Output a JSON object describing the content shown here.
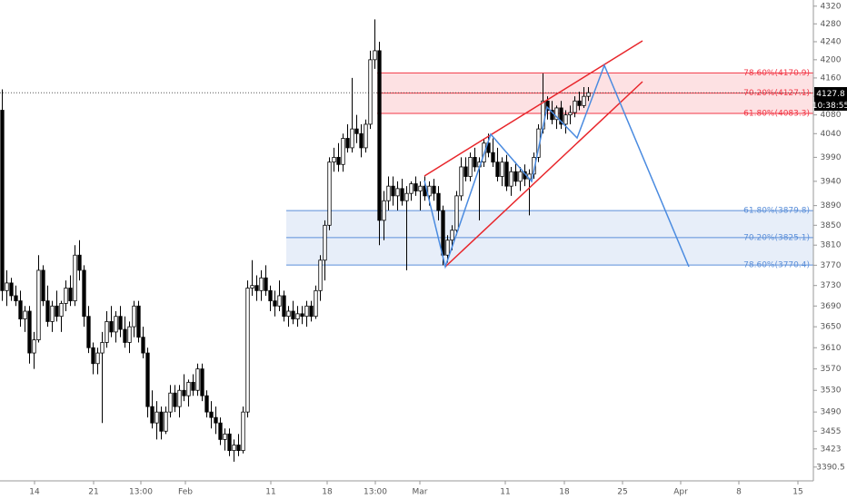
{
  "chart_data": {
    "type": "candlestick",
    "log_scale": true,
    "grid": false,
    "up_color": "#ffffff",
    "down_color": "#000000",
    "outline_color": "#000000",
    "xlim": [
      0,
      179
    ],
    "xticks": [
      {
        "value": 7.6,
        "label": "14"
      },
      {
        "value": 20.6,
        "label": "21"
      },
      {
        "value": 31,
        "label": "13:00"
      },
      {
        "value": 40.8,
        "label": "Feb"
      },
      {
        "value": 59.6,
        "label": "11"
      },
      {
        "value": 72,
        "label": "18"
      },
      {
        "value": 82.6,
        "label": "13:00"
      },
      {
        "value": 92.4,
        "label": "Mar"
      },
      {
        "value": 111.2,
        "label": "11"
      },
      {
        "value": 124.2,
        "label": "18"
      },
      {
        "value": 137,
        "label": "25"
      },
      {
        "value": 149.8,
        "label": "Apr"
      },
      {
        "value": 162.6,
        "label": "8"
      },
      {
        "value": 175.6,
        "label": "15"
      }
    ],
    "ylim": [
      3366,
      4334
    ],
    "yticks": [
      4320,
      4280,
      4240,
      4200,
      4160,
      4120,
      4080,
      4040,
      3990,
      3940,
      3890,
      3850,
      3810,
      3770,
      3730,
      3690,
      3650,
      3610,
      3570,
      3530,
      3490,
      3455,
      3423,
      3390.5
    ],
    "last_price": 4127.8,
    "countdown": "10:38:55",
    "zones": [
      {
        "color": "#f23645",
        "levels": [
          {
            "value": 4170.9,
            "label": "78.60%(4170.9)"
          },
          {
            "value": 4127.1,
            "label": "70.20%(4127.1)"
          },
          {
            "value": 4083.3,
            "label": "61.80%(4083.3)"
          }
        ]
      },
      {
        "color": "#5b8fd9",
        "levels": [
          {
            "value": 3879.8,
            "label": "61.80%(3879.8)"
          },
          {
            "value": 3825.1,
            "label": "70.20%(3825.1)"
          },
          {
            "value": 3770.4,
            "label": "78.60%(3770.4)"
          }
        ]
      }
    ],
    "candles": [
      [
        4090,
        4135,
        3700,
        3720
      ],
      [
        3720,
        3760,
        3690,
        3735
      ],
      [
        3735,
        3745,
        3700,
        3710
      ],
      [
        3710,
        3730,
        3690,
        3700
      ],
      [
        3700,
        3720,
        3650,
        3665
      ],
      [
        3665,
        3690,
        3640,
        3680
      ],
      [
        3680,
        3690,
        3580,
        3600
      ],
      [
        3600,
        3640,
        3570,
        3625
      ],
      [
        3625,
        3790,
        3620,
        3760
      ],
      [
        3760,
        3770,
        3690,
        3700
      ],
      [
        3700,
        3730,
        3650,
        3660
      ],
      [
        3660,
        3700,
        3640,
        3690
      ],
      [
        3690,
        3720,
        3660,
        3670
      ],
      [
        3670,
        3700,
        3640,
        3695
      ],
      [
        3695,
        3740,
        3680,
        3725
      ],
      [
        3725,
        3750,
        3690,
        3700
      ],
      [
        3700,
        3810,
        3690,
        3790
      ],
      [
        3790,
        3820,
        3740,
        3760
      ],
      [
        3760,
        3770,
        3650,
        3670
      ],
      [
        3670,
        3690,
        3600,
        3610
      ],
      [
        3610,
        3620,
        3560,
        3580
      ],
      [
        3580,
        3610,
        3560,
        3600
      ],
      [
        3600,
        3640,
        3470,
        3620
      ],
      [
        3620,
        3680,
        3610,
        3660
      ],
      [
        3660,
        3690,
        3630,
        3640
      ],
      [
        3640,
        3680,
        3620,
        3670
      ],
      [
        3670,
        3690,
        3630,
        3645
      ],
      [
        3645,
        3670,
        3610,
        3620
      ],
      [
        3620,
        3660,
        3600,
        3650
      ],
      [
        3650,
        3700,
        3630,
        3690
      ],
      [
        3690,
        3700,
        3620,
        3630
      ],
      [
        3630,
        3650,
        3590,
        3600
      ],
      [
        3600,
        3610,
        3480,
        3500
      ],
      [
        3500,
        3530,
        3460,
        3470
      ],
      [
        3470,
        3510,
        3440,
        3490
      ],
      [
        3490,
        3500,
        3440,
        3455
      ],
      [
        3455,
        3500,
        3450,
        3490
      ],
      [
        3490,
        3540,
        3480,
        3525
      ],
      [
        3525,
        3540,
        3490,
        3500
      ],
      [
        3500,
        3540,
        3480,
        3530
      ],
      [
        3530,
        3560,
        3510,
        3520
      ],
      [
        3520,
        3550,
        3500,
        3545
      ],
      [
        3545,
        3560,
        3520,
        3530
      ],
      [
        3530,
        3580,
        3520,
        3570
      ],
      [
        3570,
        3580,
        3510,
        3520
      ],
      [
        3520,
        3530,
        3480,
        3490
      ],
      [
        3490,
        3510,
        3460,
        3480
      ],
      [
        3480,
        3500,
        3450,
        3470
      ],
      [
        3470,
        3480,
        3430,
        3440
      ],
      [
        3440,
        3460,
        3420,
        3450
      ],
      [
        3450,
        3460,
        3410,
        3420
      ],
      [
        3420,
        3440,
        3400,
        3430
      ],
      [
        3430,
        3450,
        3410,
        3420
      ],
      [
        3420,
        3500,
        3415,
        3490
      ],
      [
        3490,
        3740,
        3480,
        3725
      ],
      [
        3725,
        3780,
        3710,
        3730
      ],
      [
        3730,
        3750,
        3700,
        3720
      ],
      [
        3720,
        3760,
        3700,
        3745
      ],
      [
        3745,
        3770,
        3710,
        3720
      ],
      [
        3720,
        3730,
        3680,
        3700
      ],
      [
        3700,
        3720,
        3670,
        3690
      ],
      [
        3690,
        3740,
        3680,
        3710
      ],
      [
        3710,
        3720,
        3660,
        3670
      ],
      [
        3670,
        3690,
        3650,
        3680
      ],
      [
        3680,
        3700,
        3655,
        3665
      ],
      [
        3665,
        3690,
        3650,
        3675
      ],
      [
        3675,
        3690,
        3655,
        3670
      ],
      [
        3670,
        3700,
        3650,
        3690
      ],
      [
        3690,
        3700,
        3660,
        3670
      ],
      [
        3670,
        3730,
        3665,
        3720
      ],
      [
        3720,
        3790,
        3700,
        3780
      ],
      [
        3780,
        3860,
        3740,
        3850
      ],
      [
        3850,
        3990,
        3840,
        3980
      ],
      [
        3980,
        4010,
        3960,
        3990
      ],
      [
        3990,
        4020,
        3960,
        3975
      ],
      [
        3975,
        4040,
        3960,
        4030
      ],
      [
        4030,
        4060,
        4000,
        4010
      ],
      [
        4010,
        4160,
        4000,
        4050
      ],
      [
        4050,
        4080,
        4020,
        4040
      ],
      [
        4040,
        4060,
        3990,
        4010
      ],
      [
        4010,
        4070,
        4000,
        4060
      ],
      [
        4060,
        4220,
        4050,
        4200
      ],
      [
        4200,
        4290,
        4180,
        4220
      ],
      [
        4220,
        4240,
        3810,
        3860
      ],
      [
        3860,
        3920,
        3820,
        3900
      ],
      [
        3900,
        3950,
        3880,
        3930
      ],
      [
        3930,
        3950,
        3890,
        3910
      ],
      [
        3910,
        3940,
        3880,
        3925
      ],
      [
        3925,
        3945,
        3890,
        3900
      ],
      [
        3900,
        3930,
        3760,
        3915
      ],
      [
        3915,
        3940,
        3900,
        3935
      ],
      [
        3935,
        3950,
        3910,
        3920
      ],
      [
        3920,
        3940,
        3880,
        3930
      ],
      [
        3930,
        3950,
        3900,
        3910
      ],
      [
        3910,
        3940,
        3890,
        3930
      ],
      [
        3930,
        3945,
        3900,
        3915
      ],
      [
        3915,
        3930,
        3860,
        3880
      ],
      [
        3880,
        3890,
        3770,
        3790
      ],
      [
        3790,
        3830,
        3775,
        3820
      ],
      [
        3820,
        3850,
        3800,
        3840
      ],
      [
        3840,
        3920,
        3830,
        3910
      ],
      [
        3910,
        3990,
        3900,
        3970
      ],
      [
        3970,
        3990,
        3940,
        3950
      ],
      [
        3950,
        4000,
        3940,
        3990
      ],
      [
        3990,
        4010,
        3960,
        3970
      ],
      [
        3970,
        3990,
        3860,
        3980
      ],
      [
        3980,
        4030,
        3970,
        4020
      ],
      [
        4020,
        4040,
        3990,
        4000
      ],
      [
        4000,
        4030,
        3970,
        3980
      ],
      [
        3980,
        4010,
        3940,
        3950
      ],
      [
        3950,
        3990,
        3930,
        3980
      ],
      [
        3980,
        3995,
        3920,
        3930
      ],
      [
        3930,
        3970,
        3910,
        3960
      ],
      [
        3960,
        3980,
        3930,
        3940
      ],
      [
        3940,
        3970,
        3920,
        3960
      ],
      [
        3960,
        3975,
        3930,
        3945
      ],
      [
        3945,
        3965,
        3870,
        3955
      ],
      [
        3955,
        4000,
        3945,
        3990
      ],
      [
        3990,
        4060,
        3980,
        4050
      ],
      [
        4050,
        4170,
        4040,
        4110
      ],
      [
        4110,
        4120,
        4070,
        4090
      ],
      [
        4090,
        4110,
        4060,
        4070
      ],
      [
        4070,
        4100,
        4050,
        4095
      ],
      [
        4095,
        4110,
        4050,
        4060
      ],
      [
        4060,
        4090,
        4040,
        4080
      ],
      [
        4080,
        4100,
        4060,
        4085
      ],
      [
        4085,
        4120,
        4075,
        4110
      ],
      [
        4110,
        4130,
        4090,
        4100
      ],
      [
        4100,
        4140,
        4095,
        4120
      ],
      [
        4120,
        4140,
        4110,
        4127.8
      ]
    ]
  }
}
